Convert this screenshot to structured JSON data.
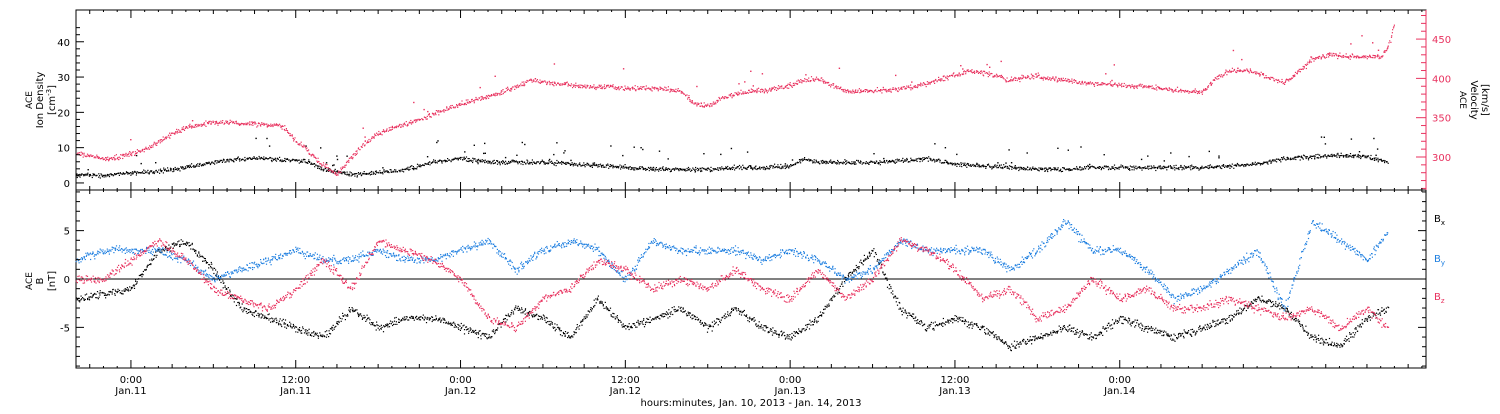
{
  "chart_data": [
    {
      "type": "scatter",
      "title": "",
      "x_unit": "hours since 2013-01-10 00:00 UTC",
      "xlim": [
        20,
        118.3
      ],
      "ylabel_left": [
        "ACE",
        "Ion Density",
        "[cm",
        "-3",
        "]"
      ],
      "ylabel_right": [
        "ACE",
        "Velocity",
        "[km/s]"
      ],
      "ylim_left": [
        -2,
        49
      ],
      "ylim_right": [
        258,
        487
      ],
      "yticks_left": [
        "0",
        "10",
        "20",
        "30",
        "40"
      ],
      "yticks_right": [
        "300",
        "350",
        "400",
        "450"
      ],
      "series": [
        {
          "name": "Ion Density",
          "axis": "left",
          "color": "#000000",
          "x": [
            20,
            22,
            24,
            26,
            28,
            30,
            32,
            34,
            36,
            37,
            38,
            40,
            42,
            44,
            46,
            48,
            50,
            52,
            54,
            56,
            58,
            60,
            62,
            64,
            66,
            68,
            70,
            72,
            73,
            74,
            76,
            78,
            80,
            82,
            84,
            86,
            88,
            90,
            92,
            94,
            96,
            98,
            100,
            102,
            104,
            106,
            108,
            110,
            112,
            114,
            115.5
          ],
          "values": [
            2.5,
            2.2,
            3,
            3.5,
            4.5,
            6,
            7,
            7,
            6.5,
            6,
            4,
            2.5,
            3,
            4,
            6,
            7,
            6,
            6,
            6,
            5.5,
            5,
            4.5,
            4,
            4,
            4,
            4.5,
            4.5,
            5,
            7,
            6,
            6,
            6,
            6.5,
            7,
            5.5,
            5,
            4.5,
            4,
            4,
            4.5,
            4.5,
            4.5,
            4.5,
            4.5,
            5,
            5.5,
            7,
            7.5,
            8,
            7.5,
            6
          ]
        },
        {
          "name": "Velocity",
          "axis": "right",
          "color": "#e8325f",
          "x": [
            20,
            21,
            22,
            23,
            24,
            25,
            26,
            27,
            28,
            29,
            30,
            31,
            32,
            33,
            34,
            35,
            36,
            36.5,
            37,
            38,
            39,
            40,
            41,
            42,
            43,
            44,
            45,
            46,
            47,
            48,
            49,
            50,
            51,
            52,
            53,
            54,
            55,
            56,
            57,
            58,
            59,
            60,
            61,
            62,
            63,
            64,
            64.5,
            65,
            66,
            67,
            68,
            69,
            70,
            71,
            72,
            73,
            74,
            75,
            76,
            77,
            78,
            79,
            80,
            81,
            82,
            83,
            84,
            85,
            86,
            87,
            88,
            89,
            90,
            91,
            92,
            93,
            94,
            95,
            96,
            97,
            98,
            99,
            100,
            101,
            102,
            103,
            104,
            105,
            106,
            107,
            108,
            109,
            110,
            111,
            112,
            113,
            114,
            115,
            115.5,
            116
          ],
          "values": [
            305,
            302,
            298,
            300,
            305,
            310,
            320,
            330,
            338,
            342,
            344,
            345,
            343,
            342,
            342,
            340,
            320,
            315,
            305,
            290,
            278,
            300,
            318,
            330,
            338,
            343,
            348,
            355,
            362,
            368,
            373,
            378,
            383,
            390,
            398,
            396,
            394,
            392,
            390,
            390,
            390,
            388,
            388,
            388,
            387,
            384,
            376,
            368,
            366,
            376,
            380,
            384,
            385,
            388,
            392,
            398,
            400,
            392,
            385,
            384,
            385,
            386,
            388,
            390,
            394,
            400,
            405,
            410,
            408,
            404,
            398,
            402,
            404,
            400,
            398,
            396,
            394,
            393,
            392,
            390,
            390,
            388,
            386,
            384,
            384,
            400,
            410,
            412,
            408,
            400,
            395,
            410,
            425,
            430,
            430,
            428,
            428,
            428,
            440,
            470
          ]
        }
      ],
      "legend": "none",
      "grid": false
    },
    {
      "type": "scatter",
      "title": "",
      "x_unit": "hours since 2013-01-10 00:00 UTC",
      "xlim": [
        20,
        118.3
      ],
      "xlabel": "hours:minutes, Jan. 10, 2013 - Jan. 14, 2013",
      "xtick_times": [
        "0:00",
        "12:00",
        "0:00",
        "12:00",
        "0:00",
        "12:00",
        "0:00"
      ],
      "xtick_dates": [
        "Jan.11",
        "Jan.11",
        "Jan.12",
        "Jan.12",
        "Jan.13",
        "Jan.13",
        "Jan.14"
      ],
      "ylabel": [
        "ACE",
        "B",
        "[nT]"
      ],
      "ylim": [
        -9.2,
        9.2
      ],
      "yticks": [
        "-5",
        "0",
        "5"
      ],
      "zero_line": true,
      "legend": "right",
      "grid": false,
      "series": [
        {
          "name": "B",
          "subscript": "x",
          "color": "#000000",
          "x": [
            20,
            22,
            24,
            26,
            28,
            30,
            32,
            34,
            36,
            38,
            40,
            42,
            44,
            46,
            48,
            50,
            52,
            54,
            56,
            58,
            60,
            62,
            64,
            66,
            68,
            70,
            72,
            74,
            76,
            78,
            80,
            82,
            84,
            86,
            88,
            90,
            92,
            94,
            96,
            98,
            100,
            102,
            104,
            106,
            108,
            110,
            112,
            114,
            115.5
          ],
          "values": [
            -2,
            -1.5,
            -1,
            3,
            4,
            1,
            -3,
            -4,
            -5,
            -6,
            -3,
            -5,
            -4,
            -4,
            -5,
            -6,
            -3,
            -4,
            -6,
            -2,
            -5,
            -4,
            -3,
            -5,
            -3,
            -5,
            -6,
            -4,
            0,
            3,
            -3,
            -5,
            -4,
            -5,
            -7,
            -6,
            -5,
            -6,
            -4,
            -5,
            -6,
            -5,
            -4,
            -2,
            -3,
            -6,
            -7,
            -4,
            -3
          ]
        },
        {
          "name": "B",
          "subscript": "y",
          "color": "#1e7fe0",
          "x": [
            20,
            22,
            24,
            26,
            28,
            30,
            32,
            34,
            36,
            38,
            40,
            42,
            44,
            46,
            48,
            50,
            52,
            54,
            56,
            58,
            60,
            62,
            64,
            66,
            68,
            70,
            72,
            74,
            76,
            78,
            80,
            82,
            84,
            86,
            88,
            90,
            92,
            94,
            96,
            98,
            100,
            102,
            104,
            106,
            108,
            110,
            112,
            114,
            115.5
          ],
          "values": [
            2,
            3,
            3,
            3,
            2,
            0,
            1,
            2,
            3,
            2,
            2,
            3,
            2,
            2,
            3,
            4,
            1,
            3,
            4,
            3,
            0,
            4,
            3,
            3,
            3,
            2,
            3,
            2,
            0,
            1,
            4,
            3,
            3,
            3,
            1,
            3,
            6,
            3,
            3,
            1,
            -2,
            -1,
            1,
            3,
            -3,
            6,
            4,
            2,
            5
          ]
        },
        {
          "name": "B",
          "subscript": "z",
          "color": "#e8325f",
          "x": [
            20,
            22,
            24,
            26,
            28,
            30,
            32,
            34,
            36,
            38,
            40,
            42,
            44,
            46,
            48,
            50,
            52,
            54,
            56,
            58,
            60,
            62,
            64,
            66,
            68,
            70,
            72,
            74,
            76,
            78,
            80,
            82,
            84,
            86,
            88,
            90,
            92,
            94,
            96,
            98,
            100,
            102,
            104,
            106,
            108,
            110,
            112,
            114,
            115.5
          ],
          "values": [
            0,
            0,
            2,
            4,
            2,
            -1,
            -2,
            -3,
            -1,
            2,
            -1,
            4,
            3,
            2,
            0,
            -4,
            -5,
            -2,
            -1,
            2,
            1,
            -1,
            0,
            -1,
            1,
            -1,
            -2,
            1,
            -2,
            0,
            4,
            3,
            1,
            -2,
            -1,
            -4,
            -3,
            0,
            -2,
            -1,
            -3,
            -3,
            -2,
            -3,
            -4,
            -3,
            -5,
            -3,
            -5
          ]
        }
      ]
    }
  ]
}
